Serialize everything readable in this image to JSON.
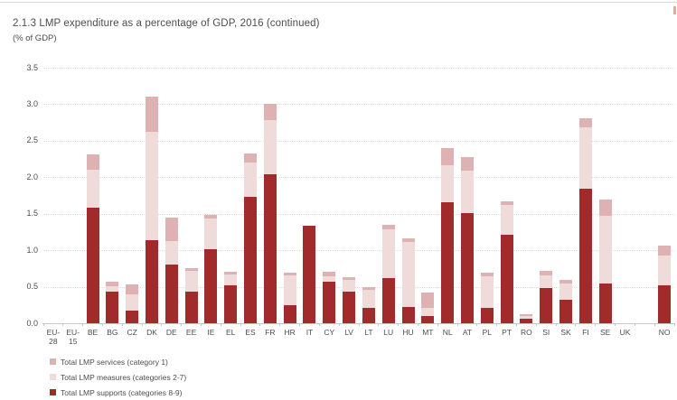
{
  "page": {
    "title": "2.1.3 LMP expenditure as a percentage of GDP, 2016 (continued)",
    "subtitle": "(% of GDP)",
    "edge_accent_color": "#e8a79f"
  },
  "chart_data": {
    "type": "bar",
    "stacked": true,
    "title": "2.1.3 LMP expenditure as a percentage of GDP, 2016 (continued)",
    "ylabel": "(% of GDP)",
    "ylim": [
      0,
      3.5
    ],
    "ytick_step": 0.5,
    "yticks": [
      "3.5",
      "3.0",
      "2.5",
      "2.0",
      "1.5",
      "1.0",
      "0.5",
      "0.0"
    ],
    "grid": "horizontal-dotted",
    "legend_position": "bottom-left",
    "categories": [
      "EU-28",
      "EU-15",
      "BE",
      "BG",
      "CZ",
      "DK",
      "DE",
      "EE",
      "IE",
      "EL",
      "ES",
      "FR",
      "HR",
      "IT",
      "CY",
      "LV",
      "LT",
      "LU",
      "HU",
      "MT",
      "NL",
      "AT",
      "PL",
      "PT",
      "RO",
      "SI",
      "SK",
      "FI",
      "SE",
      "UK",
      "NO"
    ],
    "no_data_categories": [
      "EU-28",
      "EU-15",
      "UK"
    ],
    "series": [
      {
        "name": "Total LMP services (category 1)",
        "color": "#deb2b2",
        "values": [
          null,
          null,
          0.21,
          0.06,
          0.13,
          0.49,
          0.33,
          0.04,
          0.06,
          0.04,
          0.12,
          0.23,
          0.04,
          0.0,
          0.07,
          0.04,
          0.04,
          0.06,
          0.05,
          0.21,
          0.24,
          0.19,
          0.05,
          0.05,
          0.02,
          0.07,
          0.05,
          0.12,
          0.23,
          null,
          0.13
        ]
      },
      {
        "name": "Total LMP measures (categories 2-7)",
        "color": "#f0dbdb",
        "values": [
          null,
          null,
          0.52,
          0.08,
          0.23,
          1.48,
          0.31,
          0.29,
          0.41,
          0.15,
          0.47,
          0.74,
          0.4,
          0.0,
          0.07,
          0.16,
          0.25,
          0.67,
          0.89,
          0.11,
          0.5,
          0.58,
          0.43,
          0.41,
          0.04,
          0.17,
          0.22,
          0.85,
          0.92,
          null,
          0.41
        ]
      },
      {
        "name": "Total LMP supports (categories 8-9)",
        "color": "#a12a2a",
        "values": [
          null,
          null,
          1.58,
          0.43,
          0.17,
          1.14,
          0.81,
          0.43,
          1.02,
          0.52,
          1.73,
          2.04,
          0.25,
          1.34,
          0.57,
          0.43,
          0.21,
          0.62,
          0.22,
          0.1,
          1.66,
          1.51,
          0.21,
          1.21,
          0.06,
          0.48,
          0.32,
          1.84,
          0.55,
          null,
          0.52
        ]
      }
    ]
  }
}
